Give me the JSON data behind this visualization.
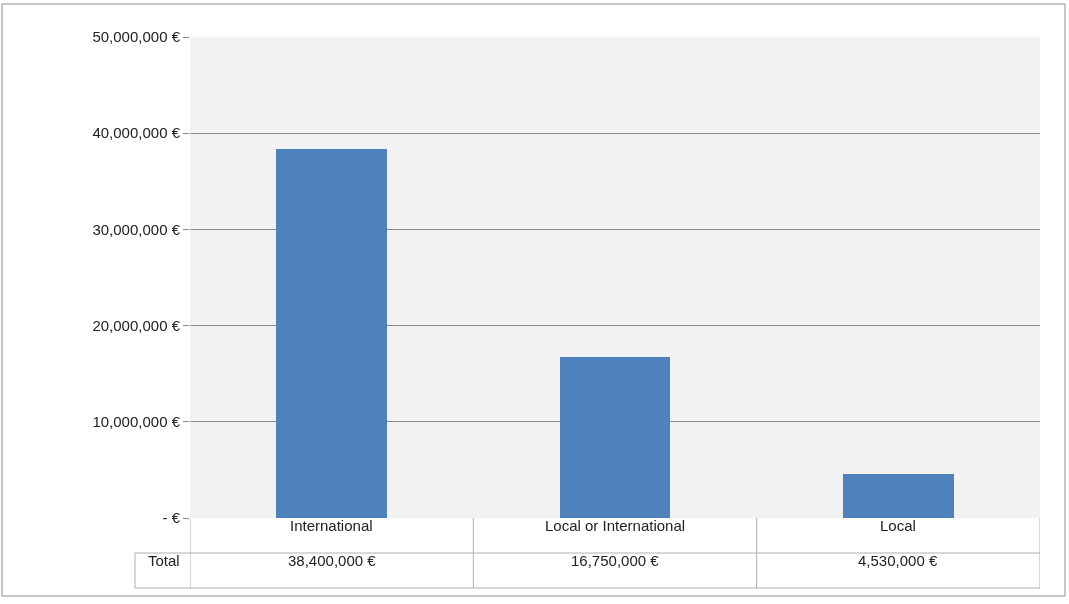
{
  "chart_data": {
    "type": "bar",
    "categories": [
      "International",
      "Local or International",
      "Local"
    ],
    "series": [
      {
        "name": "Total",
        "color": "#4f81bd",
        "values": [
          38400000,
          16750000,
          4530000
        ],
        "value_labels": [
          "38,400,000 €",
          "16,750,000 €",
          "4,530,000 €"
        ]
      }
    ],
    "ylim": [
      0,
      50000000
    ],
    "yticks": [
      {
        "value": 0,
        "label": "- €"
      },
      {
        "value": 10000000,
        "label": "10,000,000 €"
      },
      {
        "value": 20000000,
        "label": "20,000,000 €"
      },
      {
        "value": 30000000,
        "label": "30,000,000 €"
      },
      {
        "value": 40000000,
        "label": "40,000,000 €"
      },
      {
        "value": 50000000,
        "label": "50,000,000 €"
      }
    ],
    "grid": "y",
    "legend": false
  }
}
